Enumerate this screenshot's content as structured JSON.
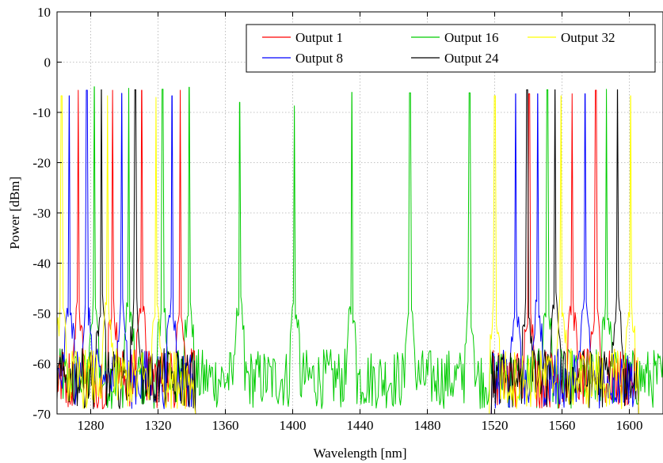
{
  "chart_data": {
    "type": "line",
    "title": "",
    "xlabel": "Wavelength [nm]",
    "ylabel": "Power [dBm]",
    "xlim": [
      1260,
      1620
    ],
    "ylim": [
      -70,
      10
    ],
    "xticks": [
      1280,
      1320,
      1360,
      1400,
      1440,
      1480,
      1520,
      1560,
      1600
    ],
    "yticks": [
      10,
      0,
      -10,
      -20,
      -30,
      -40,
      -50,
      -60,
      -70
    ],
    "grid": true,
    "legend_position": "top-right",
    "noise_floor_dbm": -63,
    "series": [
      {
        "name": "Output 1",
        "color": "#ff0000",
        "range": [
          1260,
          1620
        ],
        "peaks": [
          [
            1272.6,
            -5.6
          ],
          [
            1293.0,
            -5.6
          ],
          [
            1310.2,
            -5.6
          ],
          [
            1333.2,
            -5.6
          ],
          [
            1540.4,
            -6.3
          ],
          [
            1566.0,
            -6.3
          ],
          [
            1580.0,
            -5.6
          ]
        ]
      },
      {
        "name": "Output 8",
        "color": "#0000ff",
        "range": [
          1260,
          1620
        ],
        "peaks": [
          [
            1267.3,
            -6.7
          ],
          [
            1277.6,
            -5.6
          ],
          [
            1298.5,
            -6.2
          ],
          [
            1328.2,
            -6.7
          ],
          [
            1532.5,
            -6.3
          ],
          [
            1545.5,
            -6.3
          ],
          [
            1573.6,
            -6.3
          ]
        ]
      },
      {
        "name": "Output 16",
        "color": "#00cc00",
        "range": [
          1260,
          1640
        ],
        "peaks": [
          [
            1282.1,
            -4.9
          ],
          [
            1302.6,
            -5.2
          ],
          [
            1322.7,
            -5.4
          ],
          [
            1338.4,
            -5.0
          ],
          [
            1368.4,
            -8.0
          ],
          [
            1401.0,
            -8.7
          ],
          [
            1435.1,
            -6.0
          ],
          [
            1469.7,
            -6.1
          ],
          [
            1505.0,
            -6.1
          ],
          [
            1551.2,
            -5.5
          ],
          [
            1586.4,
            -5.4
          ]
        ]
      },
      {
        "name": "Output 24",
        "color": "#000000",
        "range": [
          1260,
          1620
        ],
        "peaks": [
          [
            1286.3,
            -5.5
          ],
          [
            1306.5,
            -5.5
          ],
          [
            1539.2,
            -5.5
          ],
          [
            1555.9,
            -5.5
          ],
          [
            1592.9,
            -5.5
          ]
        ]
      },
      {
        "name": "Output 32",
        "color": "#ffff00",
        "range": [
          1260,
          1620
        ],
        "peaks": [
          [
            1262.7,
            -6.7
          ],
          [
            1290.0,
            -6.7
          ],
          [
            1318.8,
            -7.0
          ],
          [
            1520.0,
            -6.7
          ],
          [
            1600.7,
            -6.7
          ],
          [
            1559.5,
            -6.7
          ]
        ]
      }
    ]
  }
}
